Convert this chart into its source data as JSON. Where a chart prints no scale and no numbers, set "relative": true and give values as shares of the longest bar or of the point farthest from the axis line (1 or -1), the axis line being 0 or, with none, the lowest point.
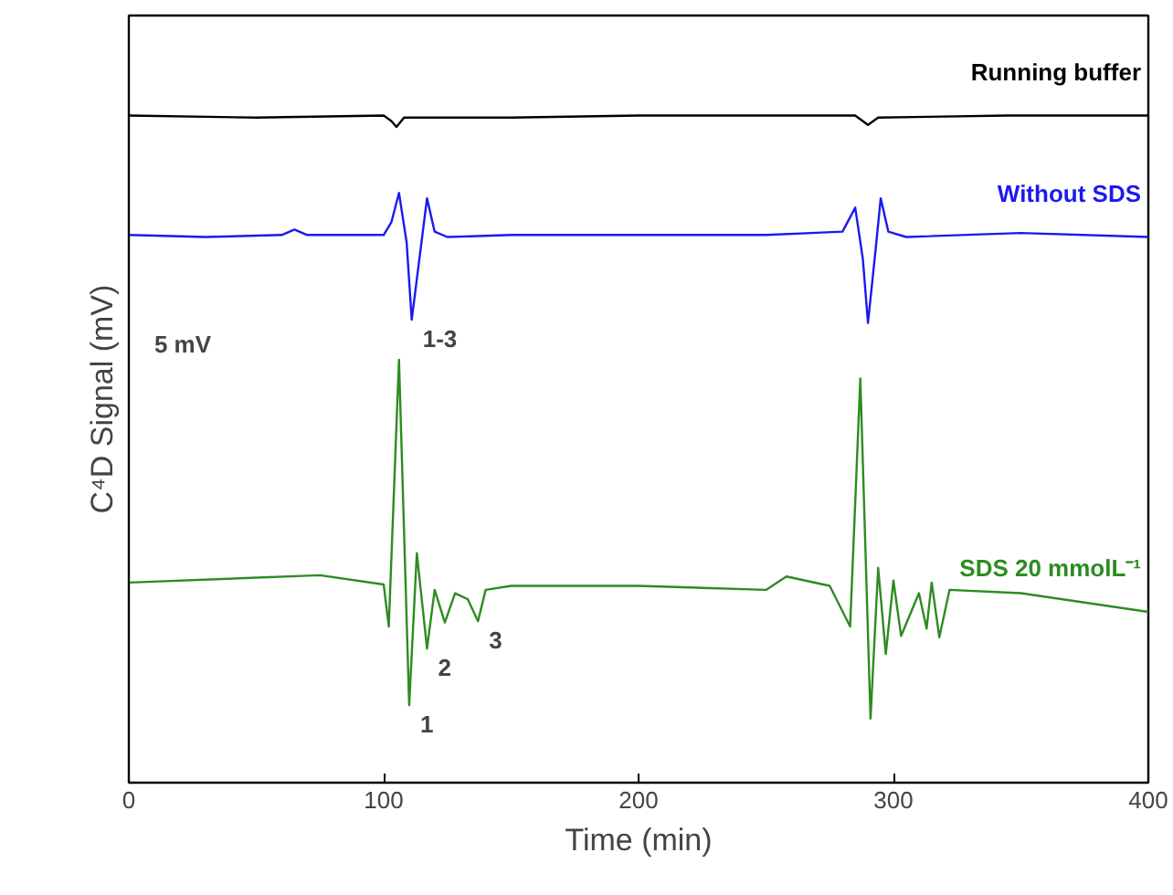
{
  "chart_data": {
    "type": "line",
    "relative": true,
    "xlabel": "Time (min)",
    "ylabel": "C⁴D Signal (mV)",
    "xlim": [
      0,
      400
    ],
    "xticks": [
      0,
      100,
      200,
      300,
      400
    ],
    "tick_labels": "x",
    "grid": false,
    "legend": false,
    "marker": "none",
    "line_style": "solid",
    "series": [
      {
        "name": "Running buffer",
        "color": "#000000",
        "x": [
          0,
          50,
          100,
          103,
          105,
          108,
          150,
          200,
          250,
          285,
          290,
          294,
          345,
          400
        ],
        "values": [
          1.0,
          0.997,
          1.0,
          0.992,
          0.983,
          0.997,
          0.997,
          1.0,
          1.0,
          1.0,
          0.986,
          0.997,
          1.0,
          1.0
        ]
      },
      {
        "name": "Without SDS",
        "color": "#1a1aee",
        "x": [
          0,
          30,
          60,
          65,
          70,
          100,
          103,
          106,
          109,
          111,
          114,
          117,
          120,
          125,
          150,
          200,
          250,
          280,
          285,
          288,
          290,
          293,
          295,
          298,
          305,
          350,
          400
        ],
        "values": [
          0.821,
          0.818,
          0.821,
          0.829,
          0.821,
          0.821,
          0.84,
          0.884,
          0.81,
          0.694,
          0.785,
          0.876,
          0.826,
          0.818,
          0.821,
          0.821,
          0.821,
          0.826,
          0.862,
          0.785,
          0.689,
          0.799,
          0.876,
          0.826,
          0.818,
          0.824,
          0.818
        ]
      },
      {
        "name": "SDS 20 mmolL⁻¹",
        "color": "#2e8b22",
        "x": [
          0,
          75,
          100,
          102,
          106,
          110,
          113,
          117,
          120,
          124,
          128,
          133,
          137,
          140,
          150,
          200,
          250,
          258,
          275,
          283,
          287,
          291,
          294,
          297,
          300,
          303,
          310,
          313,
          315,
          318,
          322,
          350,
          400
        ],
        "values": [
          0.3,
          0.311,
          0.297,
          0.234,
          0.634,
          0.116,
          0.344,
          0.201,
          0.289,
          0.24,
          0.284,
          0.275,
          0.242,
          0.289,
          0.295,
          0.295,
          0.289,
          0.309,
          0.295,
          0.234,
          0.606,
          0.096,
          0.322,
          0.193,
          0.303,
          0.22,
          0.284,
          0.231,
          0.3,
          0.218,
          0.289,
          0.284,
          0.256
        ]
      }
    ],
    "annotations": [
      {
        "text": "1-3",
        "x": 111,
        "y": 0.694
      },
      {
        "text": "1",
        "x": 110,
        "y": 0.116
      },
      {
        "text": "2",
        "x": 117,
        "y": 0.201
      },
      {
        "text": "3",
        "x": 137,
        "y": 0.242
      },
      "5 mV"
    ]
  }
}
